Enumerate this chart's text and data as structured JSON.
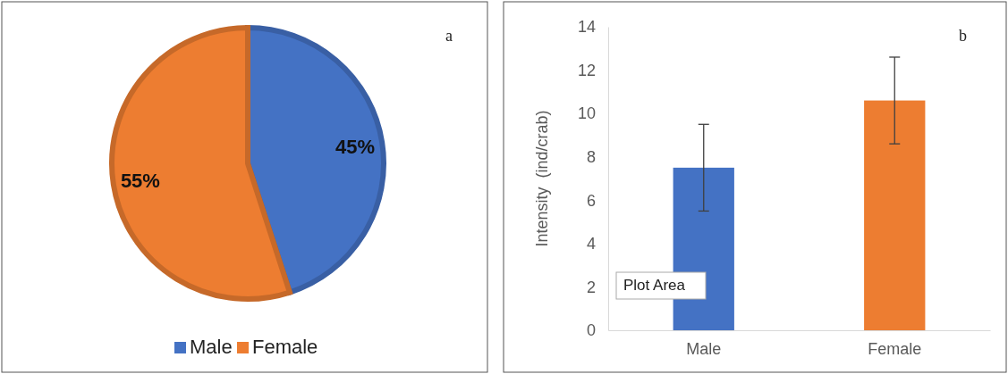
{
  "chart_data": [
    {
      "type": "pie",
      "categories": [
        "Male",
        "Female"
      ],
      "values": [
        45,
        55
      ],
      "colors": [
        "#4472c4",
        "#ed7d31"
      ],
      "value_labels": [
        "45%",
        "55%"
      ],
      "legend": "bottom",
      "annotations": [
        "a"
      ]
    },
    {
      "type": "bar",
      "categories": [
        "Male",
        "Female"
      ],
      "values": [
        7.5,
        10.6
      ],
      "colors": [
        "#4472c4",
        "#ed7d31"
      ],
      "errors": [
        2,
        2
      ],
      "ylim": [
        0,
        14
      ],
      "yticks": [
        0,
        2,
        4,
        6,
        8,
        10,
        12,
        14
      ],
      "ylabel": "Intensity  (ind/crab)",
      "grid": false,
      "annotations": [
        "b",
        "Plot Area"
      ]
    }
  ]
}
